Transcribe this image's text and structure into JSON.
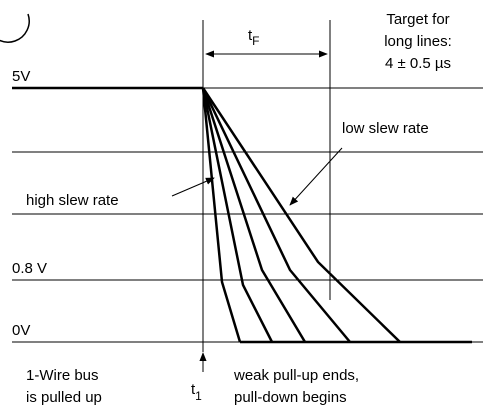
{
  "levels": {
    "high": "5V",
    "low_threshold": "0.8 V",
    "low": "0V"
  },
  "fall_time": {
    "symbol": "t",
    "subscript": "F"
  },
  "target": {
    "line1": "Target for",
    "line2": "long lines:",
    "line3": "4 ± 0.5 µs"
  },
  "labels": {
    "low_slew": "low slew rate",
    "high_slew": "high slew rate"
  },
  "bottom": {
    "left_line1": "1-Wire bus",
    "left_line2": "is pulled up",
    "t1_symbol": "t",
    "t1_subscript": "1",
    "right_line1": "weak pull-up ends,",
    "right_line2": "pull-down begins"
  }
}
